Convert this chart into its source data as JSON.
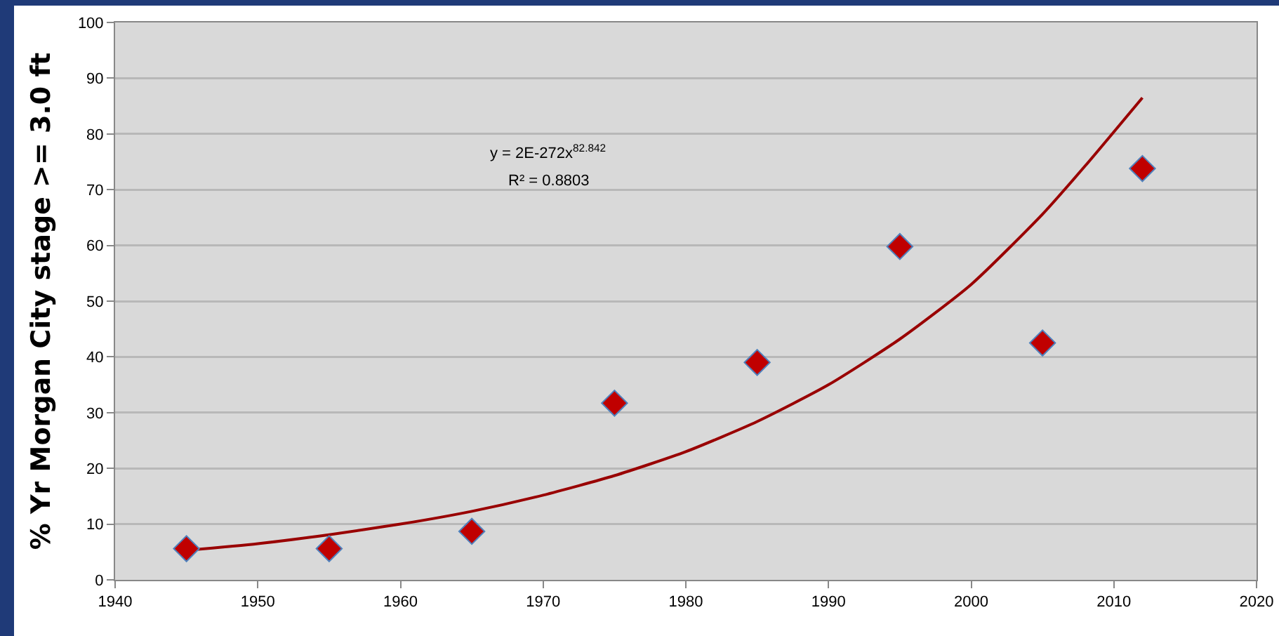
{
  "chart_data": {
    "type": "scatter",
    "ylabel": "% Yr Morgan City stage >= 3.0 ft",
    "annotations": [
      "y = 2E-272x$^{82.842}$",
      "R² = 0.8803"
    ],
    "xlim": [
      1940,
      2020
    ],
    "xticks": [
      1940,
      1950,
      1960,
      1970,
      1980,
      1990,
      2000,
      2010,
      2020
    ],
    "ylim": [
      0,
      100
    ],
    "yticks": [
      0,
      10,
      20,
      30,
      40,
      50,
      60,
      70,
      80,
      90,
      100
    ],
    "grid": "y",
    "series": [
      {
        "type": "line",
        "color": "#990000",
        "line_style": "solid",
        "marker": "none",
        "x": [
          1945,
          1950,
          1955,
          1960,
          1965,
          1970,
          1975,
          1980,
          1985,
          1990,
          1995,
          2000,
          2005,
          2008,
          2012
        ],
        "values": [
          5.3,
          6.5,
          8.1,
          10.0,
          12.3,
          15.2,
          18.7,
          23.0,
          28.4,
          35.0,
          43.2,
          53.0,
          65.6,
          74.3,
          86.5
        ]
      },
      {
        "color": "#c00000",
        "marker": "diamond",
        "x": [
          1945,
          1955,
          1965,
          1975,
          1985,
          1995,
          2005,
          2012
        ],
        "values": [
          5.6,
          5.6,
          8.7,
          31.7,
          39.0,
          59.8,
          42.5,
          73.8
        ]
      }
    ]
  }
}
